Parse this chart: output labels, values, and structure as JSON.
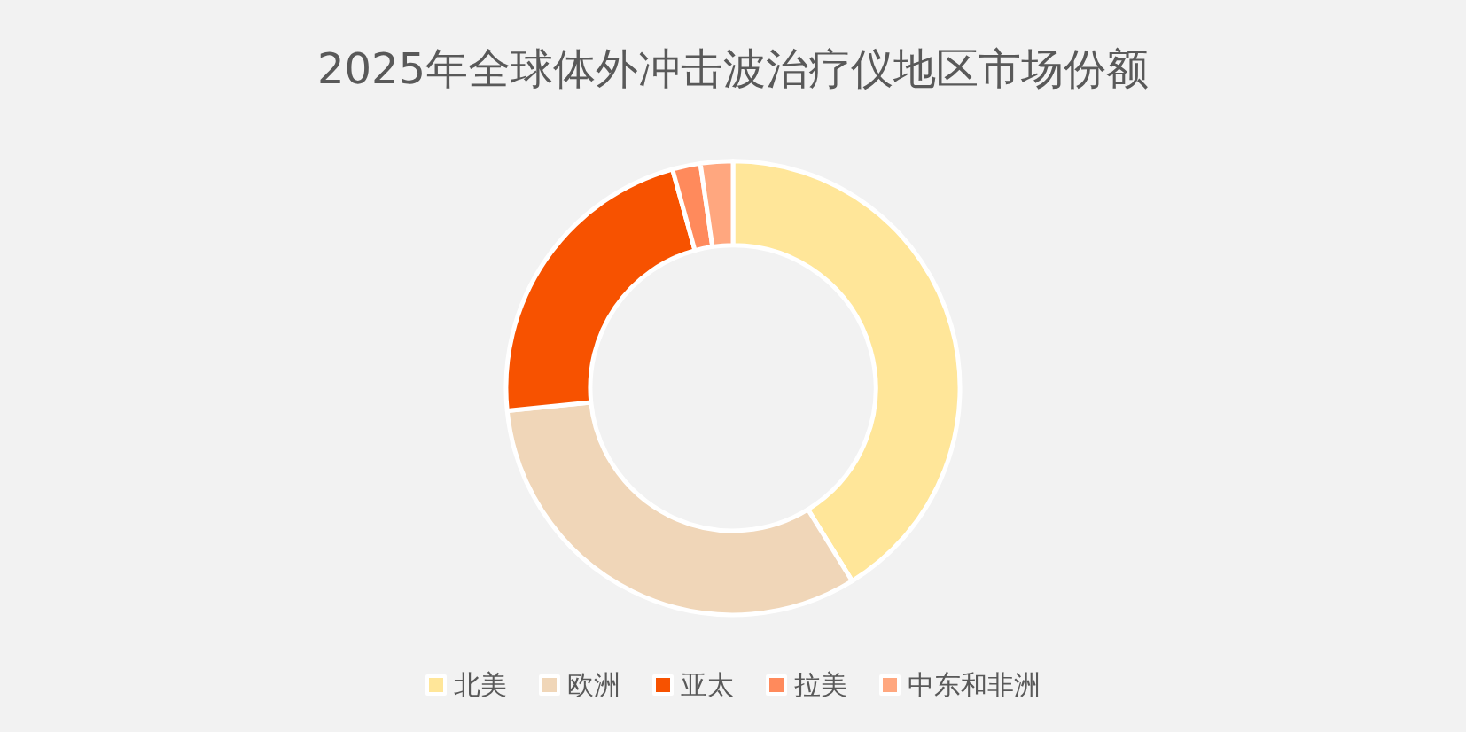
{
  "chart_data": {
    "type": "donut",
    "title": "2025年全球体外冲击波治疗仪地区市场份额",
    "categories": [
      "北美",
      "欧洲",
      "亚太",
      "拉美",
      "中东和非洲"
    ],
    "values": [
      41.2,
      32.2,
      22.3,
      2.0,
      2.3
    ],
    "colors": [
      "#ffe699",
      "#f0d6b8",
      "#f75200",
      "#ff8a5c",
      "#ffa77f"
    ],
    "legend": "bottom"
  }
}
